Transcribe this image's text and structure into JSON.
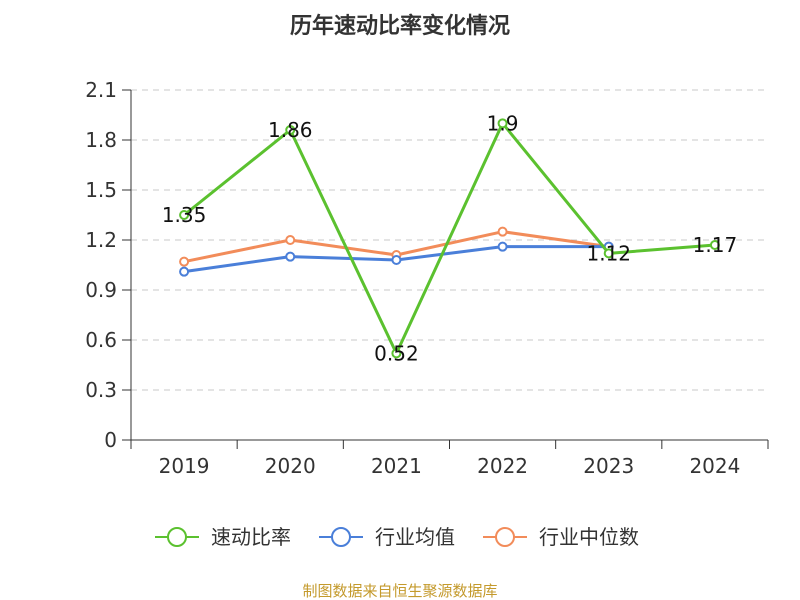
{
  "chart_data": {
    "type": "line",
    "title": "历年速动比率变化情况",
    "categories": [
      "2019",
      "2020",
      "2021",
      "2022",
      "2023",
      "2024"
    ],
    "ylim": [
      0,
      2.1
    ],
    "yticks": [
      0,
      0.3,
      0.6,
      0.9,
      1.2,
      1.5,
      1.8,
      2.1
    ],
    "ytick_labels": [
      "0",
      "0.3",
      "0.6",
      "0.9",
      "1.2",
      "1.5",
      "1.8",
      "2.1"
    ],
    "grid": true,
    "legend_position": "bottom",
    "series": [
      {
        "name": "速动比率",
        "color": "#5bc12f",
        "values": [
          1.35,
          1.86,
          0.52,
          1.9,
          1.12,
          1.17
        ],
        "data_labels": [
          "1.35",
          "1.86",
          "0.52",
          "1.9",
          "1.12",
          "1.17"
        ]
      },
      {
        "name": "行业均值",
        "color": "#4a7fd9",
        "values": [
          1.01,
          1.1,
          1.08,
          1.16,
          1.16,
          null
        ]
      },
      {
        "name": "行业中位数",
        "color": "#f28c5a",
        "values": [
          1.07,
          1.2,
          1.11,
          1.25,
          1.16,
          null
        ]
      }
    ],
    "source": "制图数据来自恒生聚源数据库"
  }
}
